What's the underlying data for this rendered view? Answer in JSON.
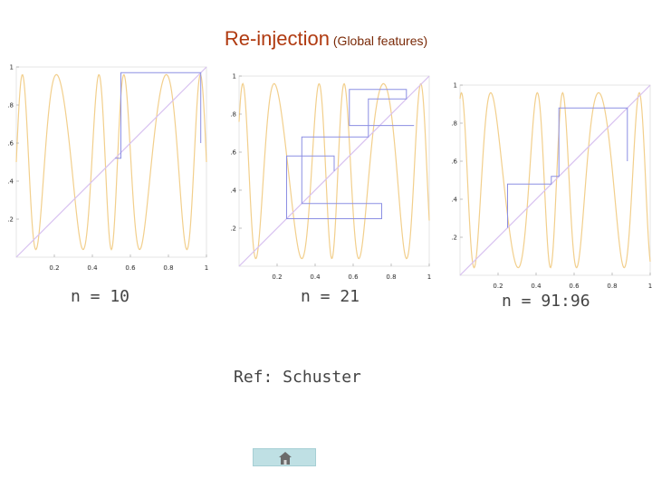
{
  "title": {
    "main": "Re-injection",
    "sub": " (Global features)"
  },
  "colors": {
    "map_curve": "#f2cf8c",
    "diagonal": "#d7c1f0",
    "cobweb": "#8c8fe3",
    "title": "#b03a10",
    "home_button": "#bfe0e4"
  },
  "plots": [
    {
      "caption": "n = 10",
      "y_ticks": [
        ".2",
        ".4",
        ".6",
        ".8",
        "1"
      ],
      "x_ticks": [
        "0.2",
        "0.4",
        "0.6",
        "0.8",
        "1"
      ],
      "cobweb": [
        [
          0.97,
          0.6
        ],
        [
          0.97,
          0.97
        ],
        [
          0.55,
          0.97
        ],
        [
          0.55,
          0.55
        ],
        [
          0.55,
          0.52
        ],
        [
          0.52,
          0.52
        ]
      ]
    },
    {
      "caption": "n = 21",
      "y_ticks": [
        ".2",
        ".4",
        ".6",
        ".8",
        "1"
      ],
      "x_ticks": [
        "0.2",
        "0.4",
        "0.6",
        "0.8",
        "1"
      ],
      "cobweb": [
        [
          0.5,
          0.5
        ],
        [
          0.5,
          0.58
        ],
        [
          0.25,
          0.58
        ],
        [
          0.25,
          0.25
        ],
        [
          0.75,
          0.25
        ],
        [
          0.75,
          0.33
        ],
        [
          0.33,
          0.33
        ],
        [
          0.33,
          0.68
        ],
        [
          0.68,
          0.68
        ],
        [
          0.68,
          0.88
        ],
        [
          0.88,
          0.88
        ],
        [
          0.88,
          0.93
        ],
        [
          0.58,
          0.93
        ],
        [
          0.58,
          0.74
        ],
        [
          0.92,
          0.74
        ]
      ]
    },
    {
      "caption": "n = 91:96",
      "y_ticks": [
        ".2",
        ".4",
        ".6",
        ".8",
        "1"
      ],
      "x_ticks": [
        "0.2",
        "0.4",
        "0.6",
        "0.8",
        "1"
      ],
      "cobweb": [
        [
          0.25,
          0.25
        ],
        [
          0.25,
          0.48
        ],
        [
          0.48,
          0.48
        ],
        [
          0.48,
          0.52
        ],
        [
          0.52,
          0.52
        ],
        [
          0.52,
          0.88
        ],
        [
          0.88,
          0.88
        ],
        [
          0.88,
          0.6
        ]
      ]
    }
  ],
  "reference": "Ref: Schuster",
  "home_button": {
    "icon": "home-icon"
  }
}
